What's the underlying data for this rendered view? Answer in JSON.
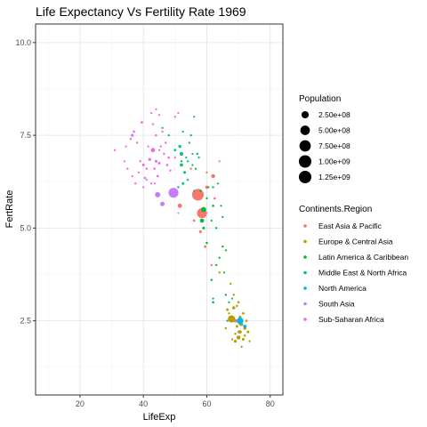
{
  "chart_data": {
    "type": "scatter",
    "title": "Life Expectancy Vs Fertility Rate 1969",
    "xlabel": "LifeExp",
    "ylabel": "FertRate",
    "xlim": [
      6,
      84
    ],
    "ylim": [
      0.5,
      10.5
    ],
    "x_ticks": [
      20,
      40,
      60,
      80
    ],
    "y_ticks": [
      2.5,
      5.0,
      7.5,
      10.0
    ],
    "x_tick_labels": [
      "20",
      "40",
      "60",
      "80"
    ],
    "y_tick_labels": [
      "2.5",
      "5.0",
      "7.5",
      "10.0"
    ],
    "grid": true,
    "size_legend": {
      "title": "Population",
      "entries": [
        {
          "label": "2.50e+08",
          "value": 250000000
        },
        {
          "label": "5.00e+08",
          "value": 500000000
        },
        {
          "label": "7.50e+08",
          "value": 750000000
        },
        {
          "label": "1.00e+09",
          "value": 1000000000
        },
        {
          "label": "1.25e+09",
          "value": 1250000000
        }
      ]
    },
    "color_legend": {
      "title": "Continents.Region",
      "placement": "right"
    },
    "series": [
      {
        "name": "East Asia & Pacific",
        "color": "#F8766D",
        "points": [
          [
            57.2,
            5.9,
            800
          ],
          [
            58.5,
            5.4,
            560
          ],
          [
            51.5,
            5.6,
            60
          ],
          [
            62,
            6.4,
            45
          ],
          [
            60,
            6.1,
            20
          ],
          [
            58,
            4.9,
            12
          ],
          [
            59.5,
            4.5,
            8
          ],
          [
            56,
            5.2,
            5
          ],
          [
            61.5,
            4.0,
            3
          ],
          [
            66,
            3.2,
            2
          ],
          [
            62.5,
            5.8,
            4
          ],
          [
            55,
            6.6,
            3
          ],
          [
            48,
            6.9,
            2
          ],
          [
            64,
            6.8,
            1
          ],
          [
            45,
            7.1,
            1
          ],
          [
            60,
            6.5,
            2
          ],
          [
            69,
            2.5,
            30
          ],
          [
            70,
            2.2,
            5
          ],
          [
            72,
            2.3,
            1
          ]
        ]
      },
      {
        "name": "Europe & Central Asia",
        "color": "#B79F00",
        "points": [
          [
            67.8,
            2.55,
            250
          ],
          [
            70.5,
            2.2,
            25
          ],
          [
            68.5,
            2.85,
            20
          ],
          [
            71,
            2.4,
            20
          ],
          [
            70,
            2.05,
            45
          ],
          [
            72,
            2.3,
            20
          ],
          [
            69,
            1.95,
            15
          ],
          [
            73,
            2.2,
            10
          ],
          [
            71.5,
            2.0,
            10
          ],
          [
            66.5,
            2.8,
            8
          ],
          [
            70.5,
            2.6,
            10
          ],
          [
            69.5,
            2.35,
            8
          ],
          [
            72.5,
            2.5,
            5
          ],
          [
            71.5,
            2.7,
            6
          ],
          [
            70,
            3.0,
            4
          ],
          [
            68.5,
            3.2,
            3
          ],
          [
            69.5,
            2.9,
            3
          ],
          [
            71,
            1.8,
            2
          ],
          [
            73.5,
            1.95,
            2
          ],
          [
            72,
            2.1,
            4
          ],
          [
            69,
            2.15,
            3
          ],
          [
            66,
            2.3,
            3
          ],
          [
            68,
            2.0,
            2
          ],
          [
            67.5,
            3.5,
            2
          ],
          [
            64,
            3.8,
            3
          ],
          [
            67,
            2.7,
            2
          ],
          [
            70.5,
            2.4,
            3
          ]
        ]
      },
      {
        "name": "Latin America & Caribbean",
        "color": "#00BA38",
        "points": [
          [
            59,
            5.5,
            95
          ],
          [
            58.5,
            5.2,
            50
          ],
          [
            59,
            5.0,
            10
          ],
          [
            62,
            5.6,
            5
          ],
          [
            60,
            4.6,
            4
          ],
          [
            62,
            3.0,
            4
          ],
          [
            61.5,
            3.6,
            3
          ],
          [
            64,
            4.2,
            2
          ],
          [
            63,
            5.0,
            2
          ],
          [
            65,
            4.5,
            2
          ],
          [
            65,
            5.3,
            1
          ],
          [
            64.5,
            5.6,
            1
          ],
          [
            63.5,
            6.2,
            1
          ],
          [
            66,
            4.4,
            1
          ],
          [
            66,
            3.2,
            1
          ],
          [
            58,
            6.0,
            3
          ],
          [
            56.5,
            6.6,
            2
          ],
          [
            57,
            7.0,
            2
          ],
          [
            54,
            6.8,
            1
          ],
          [
            60.5,
            6.1,
            1
          ],
          [
            62,
            6.1,
            2
          ],
          [
            60,
            5.8,
            2
          ],
          [
            65.5,
            3.8,
            1
          ],
          [
            67,
            3.0,
            1
          ],
          [
            68,
            3.1,
            1
          ],
          [
            66.5,
            2.5,
            1
          ],
          [
            62,
            3.1,
            1
          ],
          [
            63,
            4.0,
            2
          ],
          [
            61.5,
            5.2,
            1
          ],
          [
            52,
            6.8,
            2
          ],
          [
            55.5,
            6.7,
            1
          ]
        ]
      },
      {
        "name": "Middle East & North Africa",
        "color": "#00C08B",
        "points": [
          [
            52,
            7.0,
            30
          ],
          [
            52,
            6.7,
            20
          ],
          [
            51.5,
            7.2,
            15
          ],
          [
            53,
            6.5,
            10
          ],
          [
            52.5,
            6.2,
            8
          ],
          [
            50,
            7.1,
            5
          ],
          [
            55,
            7.5,
            3
          ],
          [
            56,
            8.0,
            1
          ],
          [
            55.5,
            7.0,
            1
          ],
          [
            52.5,
            7.6,
            2
          ],
          [
            54.5,
            7.3,
            2
          ],
          [
            51,
            6.1,
            3
          ],
          [
            54,
            6.3,
            2
          ],
          [
            57.5,
            6.9,
            2
          ],
          [
            48,
            7.5,
            2
          ],
          [
            46,
            7.7,
            2
          ],
          [
            70,
            2.5,
            2
          ],
          [
            56,
            6.0,
            1
          ],
          [
            53.5,
            6.9,
            1
          ]
        ]
      },
      {
        "name": "North America",
        "color": "#00B4F0",
        "points": [
          [
            70.5,
            2.5,
            205
          ],
          [
            72,
            2.35,
            21
          ]
        ]
      },
      {
        "name": "South Asia",
        "color": "#C77CFF",
        "points": [
          [
            49.5,
            5.95,
            540
          ],
          [
            44.5,
            5.9,
            110
          ],
          [
            46,
            5.65,
            65
          ],
          [
            44,
            6.8,
            12
          ],
          [
            36.5,
            7.5,
            12
          ],
          [
            41,
            6.3,
            1
          ],
          [
            43.5,
            6.6,
            1
          ],
          [
            51,
            5.4,
            0.3
          ]
        ]
      },
      {
        "name": "Sub-Saharan Africa",
        "color": "#F564E3",
        "points": [
          [
            39.5,
            7.85,
            6
          ],
          [
            37,
            7.6,
            4
          ],
          [
            43,
            7.1,
            55
          ],
          [
            48,
            6.9,
            4
          ],
          [
            45,
            6.75,
            8
          ],
          [
            40,
            6.7,
            10
          ],
          [
            42,
            6.85,
            12
          ],
          [
            47.5,
            6.7,
            4
          ],
          [
            45.5,
            7.2,
            2
          ],
          [
            44.5,
            6.4,
            5
          ],
          [
            43.5,
            6.6,
            3
          ],
          [
            46.5,
            7.0,
            2
          ],
          [
            41,
            6.6,
            3
          ],
          [
            44,
            7.5,
            3
          ],
          [
            43,
            7.8,
            2
          ],
          [
            47,
            7.3,
            2
          ],
          [
            38,
            7.3,
            2
          ],
          [
            36,
            7.4,
            3
          ],
          [
            35,
            6.6,
            2
          ],
          [
            37.5,
            6.2,
            3
          ],
          [
            40.5,
            6.35,
            4
          ],
          [
            42.5,
            6.2,
            2
          ],
          [
            31,
            7.1,
            2
          ],
          [
            34,
            6.8,
            1
          ],
          [
            39,
            6.8,
            2
          ],
          [
            41.5,
            7.2,
            1
          ],
          [
            42.5,
            8.1,
            1
          ],
          [
            44,
            8.2,
            1
          ],
          [
            46,
            7.6,
            2
          ],
          [
            50,
            8.0,
            2
          ],
          [
            51,
            8.1,
            1
          ],
          [
            48.5,
            6.55,
            2
          ],
          [
            36.5,
            6.4,
            1
          ],
          [
            40,
            6.1,
            1
          ],
          [
            50,
            6.9,
            1
          ],
          [
            43.5,
            6.2,
            1
          ],
          [
            34.5,
            7.2,
            1
          ],
          [
            38.5,
            6.5,
            1
          ],
          [
            45,
            8.05,
            1
          ]
        ]
      }
    ]
  }
}
